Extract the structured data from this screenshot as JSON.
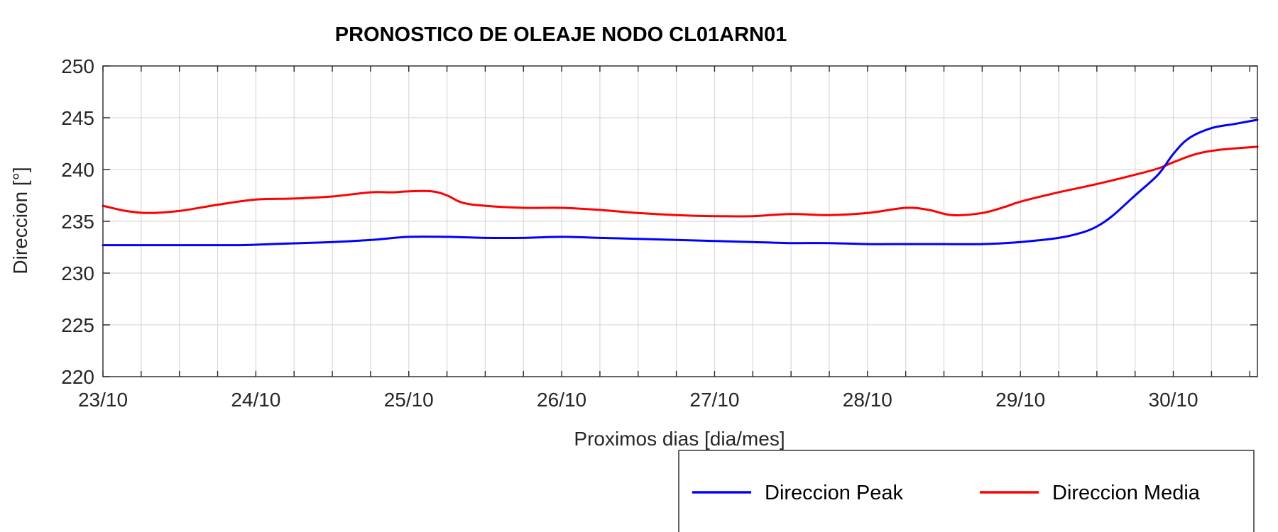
{
  "chart_data": {
    "type": "line",
    "title": "PRONOSTICO DE OLEAJE NODO CL01ARN01",
    "xlabel": "Proximos dias [dia/mes]",
    "ylabel": "Direccion [°]",
    "ylim": [
      220,
      250
    ],
    "xlim": [
      0,
      7.55
    ],
    "y_ticks": [
      220,
      225,
      230,
      235,
      240,
      245,
      250
    ],
    "x_ticks": [
      {
        "pos": 0,
        "label": "23/10"
      },
      {
        "pos": 1,
        "label": "24/10"
      },
      {
        "pos": 2,
        "label": "25/10"
      },
      {
        "pos": 3,
        "label": "26/10"
      },
      {
        "pos": 4,
        "label": "27/10"
      },
      {
        "pos": 5,
        "label": "28/10"
      },
      {
        "pos": 6,
        "label": "29/10"
      },
      {
        "pos": 7,
        "label": "30/10"
      }
    ],
    "minor_step": 0.25,
    "grid": true,
    "legend": "bottom-right, below plot",
    "series": [
      {
        "name": "Direccion Peak",
        "color": "#0000ff",
        "x": [
          0,
          0.5,
          0.9,
          1.1,
          1.3,
          1.5,
          1.75,
          2.0,
          2.25,
          2.5,
          2.75,
          3.0,
          3.25,
          3.5,
          3.75,
          4.0,
          4.25,
          4.5,
          4.75,
          5.0,
          5.25,
          5.5,
          5.75,
          6.0,
          6.25,
          6.4,
          6.5,
          6.6,
          6.75,
          6.9,
          7.0,
          7.1,
          7.25,
          7.4,
          7.55
        ],
        "y": [
          232.7,
          232.7,
          232.7,
          232.8,
          232.9,
          233.0,
          233.2,
          233.5,
          233.5,
          233.4,
          233.4,
          233.5,
          233.4,
          233.3,
          233.2,
          233.1,
          233.0,
          232.9,
          232.9,
          232.8,
          232.8,
          232.8,
          232.8,
          233.0,
          233.4,
          233.9,
          234.5,
          235.5,
          237.5,
          239.5,
          241.5,
          243.0,
          244.0,
          244.4,
          244.8
        ]
      },
      {
        "name": "Direccion Media",
        "color": "#ff0000",
        "x": [
          0,
          0.15,
          0.3,
          0.5,
          0.75,
          1.0,
          1.25,
          1.5,
          1.75,
          1.9,
          2.0,
          2.15,
          2.25,
          2.35,
          2.5,
          2.75,
          3.0,
          3.25,
          3.5,
          3.75,
          4.0,
          4.25,
          4.5,
          4.75,
          5.0,
          5.25,
          5.4,
          5.55,
          5.75,
          5.9,
          6.0,
          6.25,
          6.5,
          6.75,
          6.9,
          7.0,
          7.15,
          7.3,
          7.55
        ],
        "y": [
          236.5,
          236.0,
          235.8,
          236.0,
          236.6,
          237.1,
          237.2,
          237.4,
          237.8,
          237.8,
          237.9,
          237.9,
          237.5,
          236.8,
          236.5,
          236.3,
          236.3,
          236.1,
          235.8,
          235.6,
          235.5,
          235.5,
          235.7,
          235.6,
          235.8,
          236.3,
          236.1,
          235.6,
          235.8,
          236.4,
          236.9,
          237.8,
          238.6,
          239.5,
          240.1,
          240.7,
          241.5,
          241.9,
          242.2
        ]
      }
    ]
  }
}
